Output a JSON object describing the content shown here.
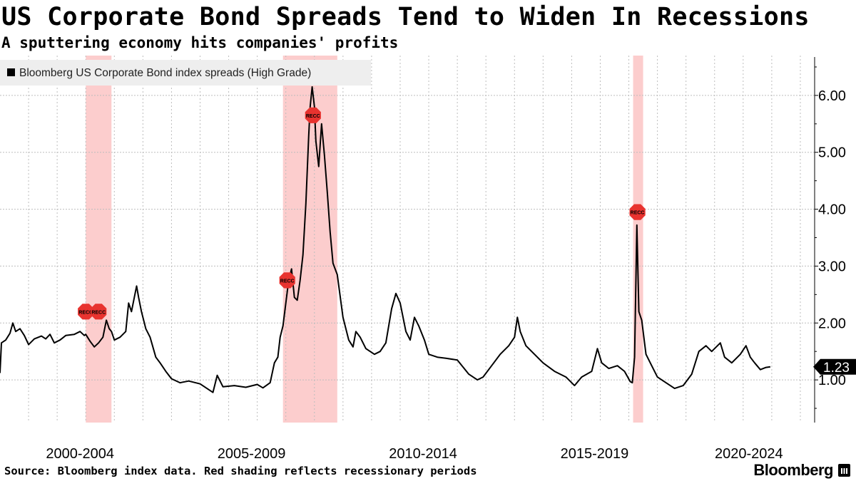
{
  "header": {
    "title": "US Corporate Bond Spreads Tend to Widen In Recessions",
    "subtitle": "A sputtering economy hits companies' profits"
  },
  "footer": {
    "source": "Source: Bloomberg index data. Red shading reflects recessionary periods",
    "brand": "Bloomberg"
  },
  "colors": {
    "line": "#000000",
    "recession_shading": "#fbc4c4",
    "recession_marker": "#e8332f",
    "grid": "#bdbdbd"
  },
  "chart_data": {
    "type": "line",
    "legend": {
      "label": "Bloomberg US Corporate Bond index spreads (High Grade)",
      "position": "top-left"
    },
    "x_unit": "year",
    "xlim": [
      1998.0,
      2026.5
    ],
    "ylim": [
      0.25,
      6.7
    ],
    "y_axis_side": "right",
    "y_ticks": [
      1.0,
      2.0,
      3.0,
      4.0,
      5.0,
      6.0
    ],
    "y_tick_labels": [
      "1.00",
      "2.00",
      "3.00",
      "4.00",
      "5.00",
      "6.00"
    ],
    "x_tick_labels": [
      {
        "label": "2000-2004",
        "x": 2000.8
      },
      {
        "label": "2005-2009",
        "x": 2006.8
      },
      {
        "label": "2010-2014",
        "x": 2012.8
      },
      {
        "label": "2015-2019",
        "x": 2018.8
      },
      {
        "label": "2020-2024",
        "x": 2024.2
      }
    ],
    "grid": true,
    "last_value_label": "1.23",
    "recessions": [
      {
        "start": 2001.0,
        "end": 2001.9,
        "markers": [
          {
            "label": "RECC",
            "x": 2001.0,
            "y": 2.2
          },
          {
            "label": "RECC",
            "x": 2001.45,
            "y": 2.2
          }
        ]
      },
      {
        "start": 2007.9,
        "end": 2009.8,
        "markers": [
          {
            "label": "RECC",
            "x": 2008.05,
            "y": 2.75
          },
          {
            "label": "RECC",
            "x": 2008.95,
            "y": 5.65
          }
        ]
      },
      {
        "start": 2020.15,
        "end": 2020.5,
        "markers": [
          {
            "label": "RECC",
            "x": 2020.3,
            "y": 3.95
          }
        ]
      }
    ],
    "series": [
      {
        "name": "Bloomberg US Corporate Bond index spreads (High Grade)",
        "points": [
          [
            1998.0,
            1.12
          ],
          [
            1998.05,
            1.65
          ],
          [
            1998.2,
            1.7
          ],
          [
            1998.35,
            1.82
          ],
          [
            1998.45,
            2.0
          ],
          [
            1998.55,
            1.85
          ],
          [
            1998.7,
            1.9
          ],
          [
            1998.85,
            1.78
          ],
          [
            1999.0,
            1.62
          ],
          [
            1999.2,
            1.72
          ],
          [
            1999.45,
            1.77
          ],
          [
            1999.6,
            1.72
          ],
          [
            1999.75,
            1.8
          ],
          [
            1999.9,
            1.65
          ],
          [
            2000.1,
            1.7
          ],
          [
            2000.3,
            1.78
          ],
          [
            2000.6,
            1.8
          ],
          [
            2000.8,
            1.85
          ],
          [
            2000.95,
            1.78
          ],
          [
            2001.0,
            1.8
          ],
          [
            2001.15,
            1.68
          ],
          [
            2001.3,
            1.58
          ],
          [
            2001.45,
            1.65
          ],
          [
            2001.6,
            1.75
          ],
          [
            2001.72,
            2.05
          ],
          [
            2001.82,
            1.9
          ],
          [
            2001.9,
            1.85
          ],
          [
            2002.0,
            1.7
          ],
          [
            2002.2,
            1.75
          ],
          [
            2002.4,
            1.85
          ],
          [
            2002.5,
            2.35
          ],
          [
            2002.6,
            2.2
          ],
          [
            2002.7,
            2.45
          ],
          [
            2002.78,
            2.65
          ],
          [
            2002.85,
            2.45
          ],
          [
            2002.95,
            2.2
          ],
          [
            2003.1,
            1.9
          ],
          [
            2003.25,
            1.75
          ],
          [
            2003.45,
            1.4
          ],
          [
            2003.6,
            1.3
          ],
          [
            2003.8,
            1.15
          ],
          [
            2004.0,
            1.02
          ],
          [
            2004.3,
            0.95
          ],
          [
            2004.6,
            0.98
          ],
          [
            2005.0,
            0.93
          ],
          [
            2005.3,
            0.83
          ],
          [
            2005.45,
            0.78
          ],
          [
            2005.6,
            1.08
          ],
          [
            2005.8,
            0.88
          ],
          [
            2006.2,
            0.9
          ],
          [
            2006.6,
            0.87
          ],
          [
            2007.0,
            0.92
          ],
          [
            2007.2,
            0.86
          ],
          [
            2007.45,
            0.95
          ],
          [
            2007.6,
            1.3
          ],
          [
            2007.72,
            1.4
          ],
          [
            2007.8,
            1.75
          ],
          [
            2007.9,
            1.95
          ],
          [
            2008.0,
            2.35
          ],
          [
            2008.1,
            2.75
          ],
          [
            2008.2,
            2.95
          ],
          [
            2008.3,
            2.45
          ],
          [
            2008.4,
            2.4
          ],
          [
            2008.5,
            2.75
          ],
          [
            2008.6,
            3.2
          ],
          [
            2008.7,
            4.1
          ],
          [
            2008.8,
            5.3
          ],
          [
            2008.85,
            5.8
          ],
          [
            2008.92,
            6.15
          ],
          [
            2009.0,
            5.8
          ],
          [
            2009.05,
            5.2
          ],
          [
            2009.15,
            4.75
          ],
          [
            2009.25,
            5.5
          ],
          [
            2009.35,
            4.95
          ],
          [
            2009.45,
            4.3
          ],
          [
            2009.55,
            3.6
          ],
          [
            2009.65,
            3.05
          ],
          [
            2009.8,
            2.85
          ],
          [
            2010.0,
            2.1
          ],
          [
            2010.2,
            1.7
          ],
          [
            2010.35,
            1.58
          ],
          [
            2010.45,
            1.85
          ],
          [
            2010.6,
            1.75
          ],
          [
            2010.8,
            1.55
          ],
          [
            2011.1,
            1.45
          ],
          [
            2011.3,
            1.5
          ],
          [
            2011.5,
            1.65
          ],
          [
            2011.7,
            2.25
          ],
          [
            2011.85,
            2.52
          ],
          [
            2012.0,
            2.35
          ],
          [
            2012.2,
            1.85
          ],
          [
            2012.35,
            1.7
          ],
          [
            2012.5,
            2.1
          ],
          [
            2012.65,
            1.95
          ],
          [
            2012.85,
            1.7
          ],
          [
            2013.0,
            1.45
          ],
          [
            2013.3,
            1.4
          ],
          [
            2013.6,
            1.38
          ],
          [
            2014.0,
            1.35
          ],
          [
            2014.4,
            1.1
          ],
          [
            2014.7,
            1.0
          ],
          [
            2014.9,
            1.05
          ],
          [
            2015.2,
            1.25
          ],
          [
            2015.5,
            1.45
          ],
          [
            2015.8,
            1.6
          ],
          [
            2016.0,
            1.75
          ],
          [
            2016.1,
            2.1
          ],
          [
            2016.2,
            1.85
          ],
          [
            2016.4,
            1.6
          ],
          [
            2016.7,
            1.45
          ],
          [
            2017.0,
            1.3
          ],
          [
            2017.4,
            1.15
          ],
          [
            2017.8,
            1.05
          ],
          [
            2018.1,
            0.9
          ],
          [
            2018.35,
            1.05
          ],
          [
            2018.7,
            1.15
          ],
          [
            2018.9,
            1.55
          ],
          [
            2019.05,
            1.3
          ],
          [
            2019.3,
            1.2
          ],
          [
            2019.6,
            1.25
          ],
          [
            2019.85,
            1.15
          ],
          [
            2020.05,
            0.97
          ],
          [
            2020.12,
            0.95
          ],
          [
            2020.2,
            1.4
          ],
          [
            2020.28,
            3.72
          ],
          [
            2020.35,
            2.2
          ],
          [
            2020.45,
            2.05
          ],
          [
            2020.6,
            1.45
          ],
          [
            2020.8,
            1.25
          ],
          [
            2021.0,
            1.05
          ],
          [
            2021.3,
            0.95
          ],
          [
            2021.6,
            0.85
          ],
          [
            2021.9,
            0.9
          ],
          [
            2022.2,
            1.1
          ],
          [
            2022.45,
            1.5
          ],
          [
            2022.7,
            1.6
          ],
          [
            2022.9,
            1.5
          ],
          [
            2023.2,
            1.65
          ],
          [
            2023.35,
            1.4
          ],
          [
            2023.6,
            1.3
          ],
          [
            2023.9,
            1.45
          ],
          [
            2024.1,
            1.6
          ],
          [
            2024.25,
            1.4
          ],
          [
            2024.4,
            1.3
          ],
          [
            2024.6,
            1.18
          ],
          [
            2024.8,
            1.22
          ],
          [
            2024.95,
            1.23
          ]
        ]
      }
    ]
  }
}
